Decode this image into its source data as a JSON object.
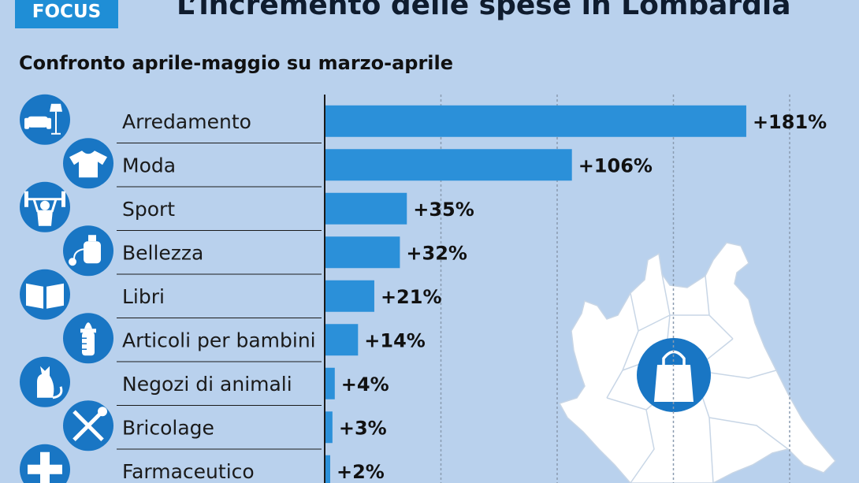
{
  "badge": "FOCUS",
  "chart_data": {
    "type": "bar",
    "orientation": "horizontal",
    "title": "L’incremento delle spese in Lombardia",
    "subtitle": "Confronto aprile-maggio su marzo-aprile",
    "categories": [
      "Arredamento",
      "Moda",
      "Sport",
      "Bellezza",
      "Libri",
      "Articoli per bambini",
      "Negozi di animali",
      "Bricolage",
      "Farmaceutico"
    ],
    "values": [
      181,
      106,
      35,
      32,
      21,
      14,
      4,
      3,
      2
    ],
    "value_labels": [
      "+181%",
      "+106%",
      "+35%",
      "+32%",
      "+21%",
      "+14%",
      "+4%",
      "+3%",
      "+2%"
    ],
    "icons": [
      "sofa-lamp-icon",
      "tshirt-icon",
      "weightlifter-icon",
      "perfume-icon",
      "book-icon",
      "baby-bottle-icon",
      "cat-icon",
      "tools-icon",
      "pharmacy-cross-icon"
    ],
    "xlim": [
      0,
      200
    ],
    "grid": true,
    "colors": {
      "bar": "#2b90d9",
      "icon": "#1976c4",
      "background": "#b9d1ed",
      "badge": "#1f8ed6"
    }
  },
  "map": {
    "icon": "shopping-bag-icon"
  }
}
